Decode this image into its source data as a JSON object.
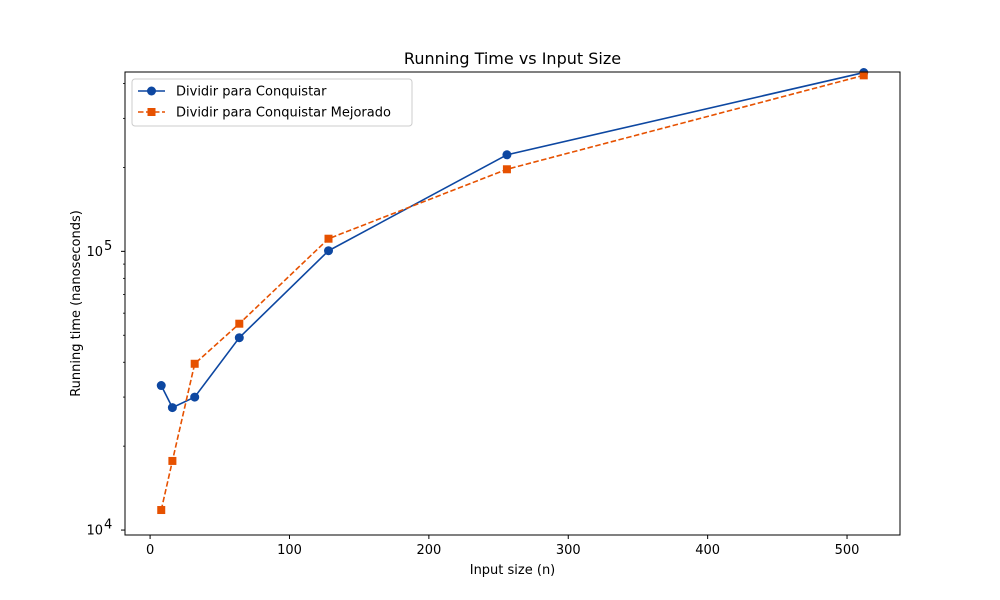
{
  "chart_data": {
    "type": "line",
    "title": "Running Time vs Input Size",
    "xlabel": "Input size (n)",
    "ylabel": "Running time (nanoseconds)",
    "xlim": [
      -18,
      538
    ],
    "ylim": [
      9600,
      440000
    ],
    "yscale": "log",
    "x_ticks": [
      0,
      100,
      200,
      300,
      400,
      500
    ],
    "y_ticks": [
      {
        "value": 10000,
        "base": "10",
        "exp": "4"
      },
      {
        "value": 100000,
        "base": "10",
        "exp": "5"
      }
    ],
    "grid": false,
    "legend_position": "top-left",
    "x": [
      8,
      16,
      32,
      64,
      128,
      256,
      512
    ],
    "series": [
      {
        "name": "Dividir para Conquistar",
        "values": [
          33000,
          27500,
          30000,
          49000,
          100500,
          222000,
          438000
        ],
        "color": "#0d47a1",
        "marker": "circle",
        "line_style": "solid"
      },
      {
        "name": "Dividir para Conquistar Mejorado",
        "values": [
          11800,
          17700,
          39500,
          55000,
          111000,
          197000,
          428000
        ],
        "color": "#e65100",
        "marker": "square",
        "line_style": "dashed"
      }
    ]
  }
}
